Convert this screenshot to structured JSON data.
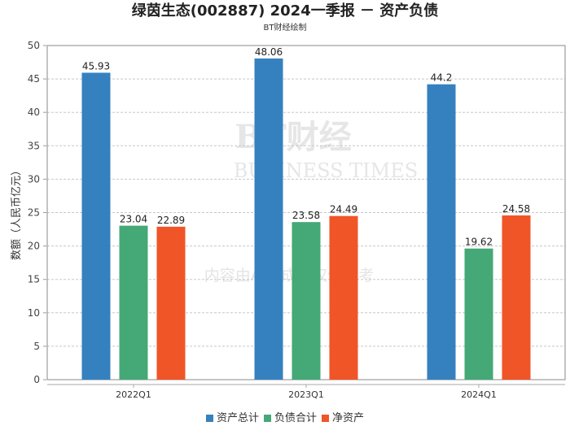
{
  "chart_data": {
    "type": "bar",
    "title": "绿茵生态(002887) 2024一季报 － 资产负债",
    "subtitle": "BT财经绘制",
    "xlabel": "",
    "ylabel": "数额（人民币亿元）",
    "ylim": [
      0,
      50
    ],
    "yticks": [
      "0",
      "5",
      "10",
      "15",
      "20",
      "25",
      "30",
      "35",
      "40",
      "45",
      "50"
    ],
    "grid": true,
    "legend_position": "bottom",
    "categories": [
      "2022Q1",
      "2023Q1",
      "2024Q1"
    ],
    "series": [
      {
        "name": "资产总计",
        "color": "#3581bf",
        "values": [
          45.93,
          48.06,
          44.2
        ],
        "labels": [
          "45.93",
          "48.06",
          "44.2"
        ]
      },
      {
        "name": "负债合计",
        "color": "#45a877",
        "values": [
          23.04,
          23.58,
          19.62
        ],
        "labels": [
          "23.04",
          "23.58",
          "19.62"
        ]
      },
      {
        "name": "净资产",
        "color": "#f05528",
        "values": [
          22.89,
          24.49,
          24.58
        ],
        "labels": [
          "22.89",
          "24.49",
          "24.58"
        ]
      }
    ]
  },
  "watermark": {
    "brand": "BT财经",
    "english": "BUSINESS TIMES",
    "note": "内容由AI生成，仅供参考"
  }
}
